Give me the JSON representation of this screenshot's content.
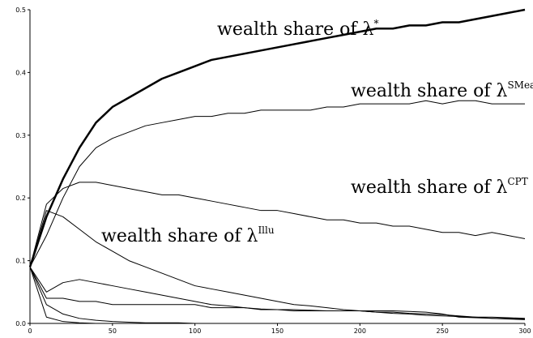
{
  "chart_data": {
    "type": "line",
    "x": [
      0,
      10,
      20,
      30,
      40,
      50,
      60,
      70,
      80,
      90,
      100,
      110,
      120,
      130,
      140,
      150,
      160,
      170,
      180,
      190,
      200,
      210,
      220,
      230,
      240,
      250,
      260,
      270,
      280,
      290,
      300
    ],
    "xlim": [
      0,
      300
    ],
    "xticks": [
      0,
      50,
      100,
      150,
      200,
      250,
      300
    ],
    "ylim": [
      0,
      0.5
    ],
    "yticks": [
      {
        "value": 0,
        "label": "0.0"
      },
      0.1,
      0.2,
      0.3,
      0.4,
      0.5
    ],
    "series": [
      {
        "color": "#000000",
        "linewidth": 2.5,
        "values": [
          0.09,
          0.17,
          0.23,
          0.28,
          0.32,
          0.345,
          0.36,
          0.375,
          0.39,
          0.4,
          0.41,
          0.42,
          0.425,
          0.43,
          0.435,
          0.44,
          0.445,
          0.45,
          0.455,
          0.46,
          0.465,
          0.47,
          0.47,
          0.475,
          0.475,
          0.48,
          0.48,
          0.485,
          0.49,
          0.495,
          0.5
        ]
      },
      {
        "color": "#000000",
        "linewidth": 1,
        "values": [
          0.09,
          0.14,
          0.2,
          0.25,
          0.28,
          0.295,
          0.305,
          0.315,
          0.32,
          0.325,
          0.33,
          0.33,
          0.335,
          0.335,
          0.34,
          0.34,
          0.34,
          0.34,
          0.345,
          0.345,
          0.35,
          0.35,
          0.35,
          0.35,
          0.355,
          0.35,
          0.355,
          0.355,
          0.35,
          0.35,
          0.35
        ]
      },
      {
        "color": "#000000",
        "linewidth": 1,
        "values": [
          0.09,
          0.19,
          0.215,
          0.225,
          0.225,
          0.22,
          0.215,
          0.21,
          0.205,
          0.205,
          0.2,
          0.195,
          0.19,
          0.185,
          0.18,
          0.18,
          0.175,
          0.17,
          0.165,
          0.165,
          0.16,
          0.16,
          0.155,
          0.155,
          0.15,
          0.145,
          0.145,
          0.14,
          0.145,
          0.14,
          0.135
        ]
      },
      {
        "color": "#000000",
        "linewidth": 1,
        "values": [
          0.09,
          0.18,
          0.17,
          0.15,
          0.13,
          0.115,
          0.1,
          0.09,
          0.08,
          0.07,
          0.06,
          0.055,
          0.05,
          0.045,
          0.04,
          0.035,
          0.03,
          0.028,
          0.025,
          0.022,
          0.02,
          0.018,
          0.016,
          0.015,
          0.013,
          0.012,
          0.011,
          0.01,
          0.01,
          0.009,
          0.008
        ]
      },
      {
        "color": "#000000",
        "linewidth": 1,
        "values": [
          0.09,
          0.05,
          0.065,
          0.07,
          0.065,
          0.06,
          0.055,
          0.05,
          0.045,
          0.04,
          0.035,
          0.03,
          0.028,
          0.025,
          0.023,
          0.022,
          0.022,
          0.021,
          0.02,
          0.02,
          0.02,
          0.02,
          0.02,
          0.019,
          0.018,
          0.015,
          0.01,
          0.009,
          0.008,
          0.007,
          0.006
        ]
      },
      {
        "color": "#000000",
        "linewidth": 1,
        "values": [
          0.09,
          0.04,
          0.04,
          0.035,
          0.035,
          0.03,
          0.03,
          0.03,
          0.03,
          0.03,
          0.03,
          0.025,
          0.025,
          0.025,
          0.022,
          0.022,
          0.02,
          0.02,
          0.02,
          0.02,
          0.02,
          0.018,
          0.018,
          0.016,
          0.015,
          0.014,
          0.012,
          0.01,
          0.008,
          0.008,
          0.007
        ]
      },
      {
        "color": "#000000",
        "linewidth": 1,
        "values": [
          0.09,
          0.03,
          0.015,
          0.008,
          0.005,
          0.003,
          0.002,
          0.001,
          0.001,
          0.001,
          0,
          0,
          0,
          0,
          0,
          0,
          0,
          0,
          0,
          0,
          0,
          0,
          0,
          0,
          0,
          0,
          0,
          0,
          0,
          0,
          0
        ]
      },
      {
        "color": "#000000",
        "linewidth": 1,
        "values": [
          0.09,
          0.01,
          0.003,
          0.001,
          0,
          0,
          0,
          0,
          0,
          0,
          0,
          0,
          0,
          0,
          0,
          0,
          0,
          0,
          0,
          0,
          0,
          0,
          0,
          0,
          0,
          0,
          0,
          0,
          0,
          0,
          0
        ]
      }
    ],
    "annotations": [
      {
        "text": "wealth share of λ",
        "sup": "*"
      },
      {
        "text": "wealth share of λ",
        "sup": "SMean"
      },
      {
        "text": "wealth share of λ",
        "sup": "CPT"
      },
      {
        "text": "wealth share of λ",
        "sup": "Illu"
      }
    ]
  }
}
